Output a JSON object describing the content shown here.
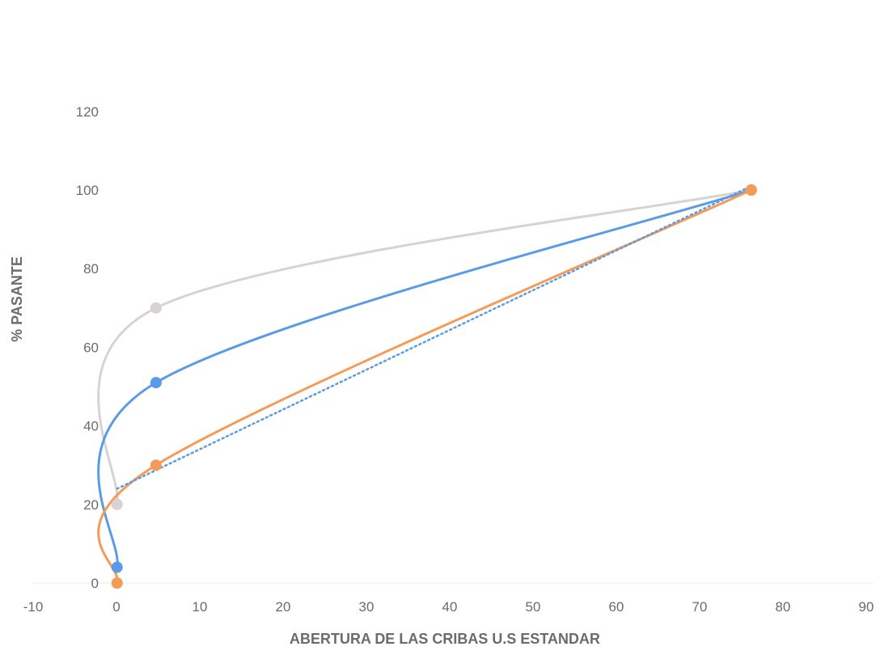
{
  "chart_data": {
    "type": "scatter",
    "title": "",
    "xlabel": "ABERTURA DE LAS CRIBAS U.S ESTANDAR",
    "ylabel": "% PASANTE",
    "xlim": [
      -10,
      90
    ],
    "ylim": [
      0,
      120
    ],
    "x_ticks": [
      -10,
      0,
      10,
      20,
      30,
      40,
      50,
      60,
      70,
      80,
      90
    ],
    "y_ticks": [
      0,
      20,
      40,
      60,
      80,
      100,
      120
    ],
    "grid": false,
    "legend": "none",
    "series": [
      {
        "color": "#d9d2d2",
        "points": [
          {
            "x": 0.075,
            "y": 20
          },
          {
            "x": 4.75,
            "y": 70
          },
          {
            "x": 76.2,
            "y": 100
          }
        ]
      },
      {
        "color": "#5b9be6",
        "points": [
          {
            "x": 0.075,
            "y": 4
          },
          {
            "x": 4.75,
            "y": 51
          },
          {
            "x": 76.2,
            "y": 100
          }
        ]
      },
      {
        "color": "#f59b57",
        "points": [
          {
            "x": 0.075,
            "y": 0
          },
          {
            "x": 4.75,
            "y": 30
          },
          {
            "x": 76.2,
            "y": 100
          }
        ]
      }
    ],
    "trendline": {
      "color": "#5b9be6",
      "style": "dotted",
      "from": {
        "x": 0.075,
        "y": 24
      },
      "to": {
        "x": 76.2,
        "y": 101
      }
    }
  }
}
